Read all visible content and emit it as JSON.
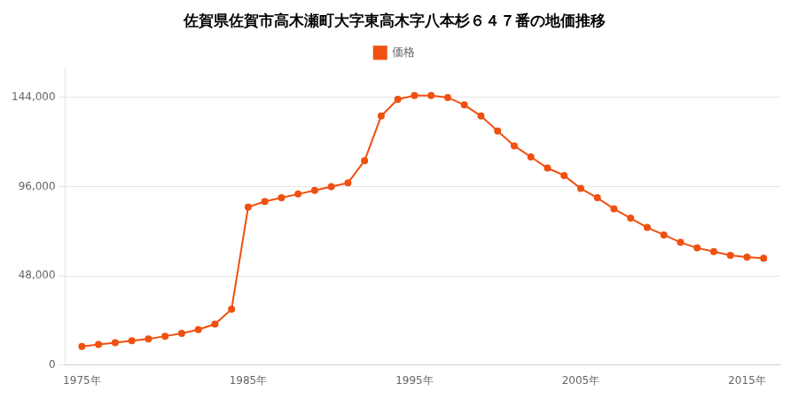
{
  "chart_data": {
    "type": "line",
    "title": "佐賀県佐賀市高木瀬町大字東高木字八本杉６４７番の地価推移",
    "x": [
      1975,
      1976,
      1977,
      1978,
      1979,
      1980,
      1981,
      1982,
      1983,
      1984,
      1985,
      1986,
      1987,
      1988,
      1989,
      1990,
      1991,
      1992,
      1993,
      1994,
      1995,
      1996,
      1997,
      1998,
      1999,
      2000,
      2001,
      2002,
      2003,
      2004,
      2005,
      2006,
      2007,
      2008,
      2009,
      2010,
      2011,
      2012,
      2013,
      2014,
      2015,
      2016
    ],
    "series": [
      {
        "name": "価格",
        "color": "#f05010",
        "marker": "circle",
        "values": [
          10000,
          11000,
          12000,
          13000,
          14000,
          15500,
          17000,
          19000,
          22000,
          30000,
          85000,
          88000,
          90000,
          92000,
          94000,
          96000,
          98000,
          110000,
          134000,
          143000,
          145000,
          145000,
          144000,
          140000,
          134000,
          126000,
          118000,
          112000,
          106000,
          102000,
          95000,
          90000,
          84000,
          79000,
          74000,
          70000,
          66000,
          63000,
          61000,
          59000,
          58000,
          57500
        ]
      }
    ],
    "xlim": [
      1974,
      2017
    ],
    "xticks": [
      {
        "value": 1975,
        "label": "1975年"
      },
      {
        "value": 1985,
        "label": "1985年"
      },
      {
        "value": 1995,
        "label": "1995年"
      },
      {
        "value": 2005,
        "label": "2005年"
      },
      {
        "value": 2015,
        "label": "2015年"
      }
    ],
    "ylim": [
      0,
      160000
    ],
    "yticks": [
      0,
      {
        "value": 48000,
        "label": "48,000"
      },
      {
        "value": 96000,
        "label": "96,000"
      },
      {
        "value": 144000,
        "label": "144,000"
      }
    ],
    "grid": "y",
    "legend": "top"
  }
}
